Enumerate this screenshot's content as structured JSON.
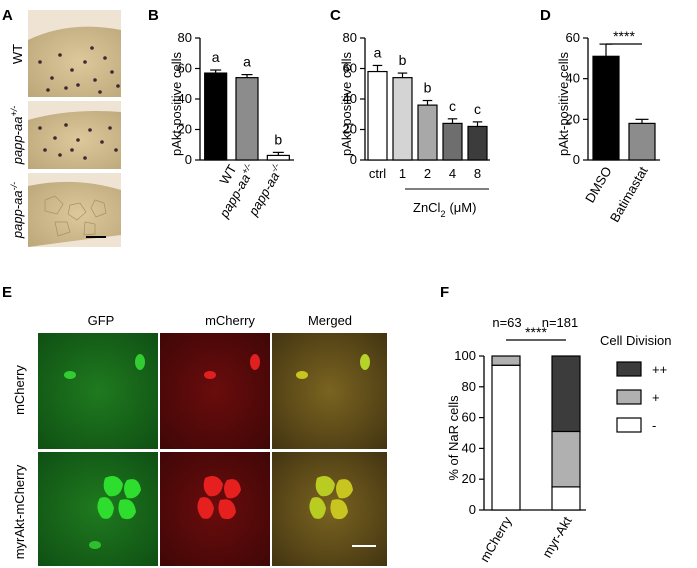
{
  "panels": {
    "A": {
      "letter": "A",
      "rows": [
        {
          "label": "WT",
          "sup": ""
        },
        {
          "label": "papp-aa",
          "sup": "+/-"
        },
        {
          "label": "papp-aa",
          "sup": "-/-"
        }
      ],
      "colors": {
        "tissue": "#d8c391",
        "dots": "#3a2a30"
      }
    },
    "E": {
      "letter": "E",
      "col_labels": [
        "GFP",
        "mCherry",
        "Merged"
      ],
      "row_labels": [
        "mCherry",
        "myrAkt-mCherry"
      ],
      "colors": {
        "gfp": "#2fbe2f",
        "mcherry": "#e01818",
        "merged": "#c8c420"
      }
    }
  },
  "chart_data": [
    {
      "panel": "B",
      "type": "bar",
      "ylabel": "pAkt-positive cells",
      "ylim": [
        0,
        80
      ],
      "yticks": [
        0,
        20,
        40,
        60,
        80
      ],
      "categories": [
        {
          "label": "WT",
          "sup": ""
        },
        {
          "label": "papp-aa",
          "sup": "+/-"
        },
        {
          "label": "papp-aa",
          "sup": "-/-"
        }
      ],
      "values": [
        57,
        54,
        3
      ],
      "errors": [
        2,
        2,
        2
      ],
      "letters": [
        "a",
        "a",
        "b"
      ],
      "colors": [
        "#000000",
        "#8c8c8c",
        "#ffffff"
      ]
    },
    {
      "panel": "C",
      "type": "bar",
      "ylabel": "pAkt-positive cells",
      "ylim": [
        0,
        80
      ],
      "yticks": [
        0,
        20,
        40,
        60,
        80
      ],
      "categories": [
        "ctrl",
        "1",
        "2",
        "4",
        "8"
      ],
      "values": [
        58,
        54,
        36,
        24,
        22
      ],
      "errors": [
        4,
        3,
        3,
        3,
        3
      ],
      "letters": [
        "a",
        "b",
        "b",
        "c",
        "c"
      ],
      "colors": [
        "#ffffff",
        "#d4d4d4",
        "#a8a8a8",
        "#6e6e6e",
        "#3c3c3c"
      ],
      "xlabel": "ZnCl",
      "xlabel_sub": "2",
      "xlabel_unit": "(μM)"
    },
    {
      "panel": "D",
      "type": "bar",
      "ylabel": "pAkt-positive cells",
      "ylim": [
        0,
        60
      ],
      "yticks": [
        0,
        20,
        40,
        60
      ],
      "categories": [
        "DMSO",
        "Batimastat"
      ],
      "values": [
        51,
        18
      ],
      "errors": [
        6,
        2
      ],
      "significance": "****",
      "colors": [
        "#000000",
        "#8c8c8c"
      ]
    },
    {
      "panel": "F",
      "type": "bar",
      "stacked": true,
      "ylabel": "% of NaR cells",
      "ylim": [
        0,
        100
      ],
      "yticks": [
        0,
        20,
        40,
        60,
        80,
        100
      ],
      "categories": [
        "mCherry",
        "myr-Akt"
      ],
      "n_labels": [
        "n=63",
        "n=181"
      ],
      "significance": "****",
      "legend_title": "Cell Division",
      "series": [
        {
          "name": "-",
          "values": [
            94,
            15
          ],
          "color": "#ffffff"
        },
        {
          "name": "+",
          "values": [
            6,
            36
          ],
          "color": "#b0b0b0"
        },
        {
          "name": "++",
          "values": [
            0,
            49
          ],
          "color": "#3c3c3c"
        }
      ]
    }
  ]
}
